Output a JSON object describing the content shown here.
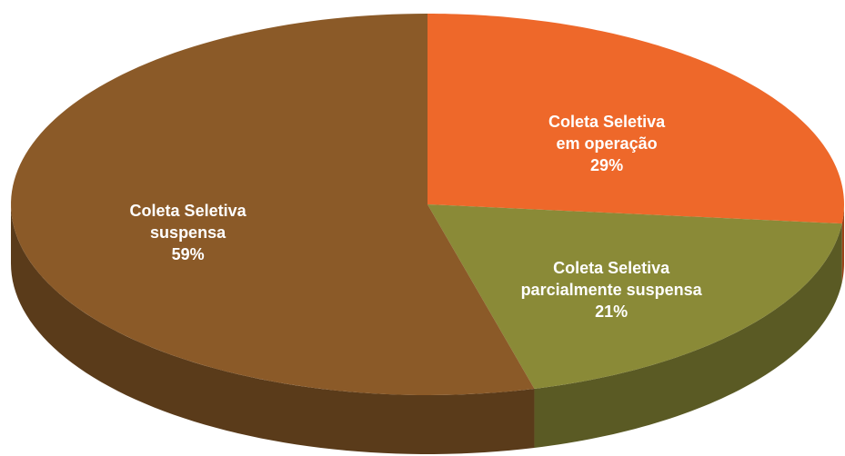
{
  "chart_data": {
    "type": "pie",
    "categories": [
      "Coleta Seletiva\nem operação",
      "Coleta Seletiva\nparcialmente suspensa",
      "Coleta Seletiva\nsuspensa"
    ],
    "values": [
      29,
      21,
      59
    ],
    "value_labels": [
      "29%",
      "21%",
      "59%"
    ],
    "colors": [
      "#ee682a",
      "#8a8a37",
      "#8b5a28"
    ]
  }
}
